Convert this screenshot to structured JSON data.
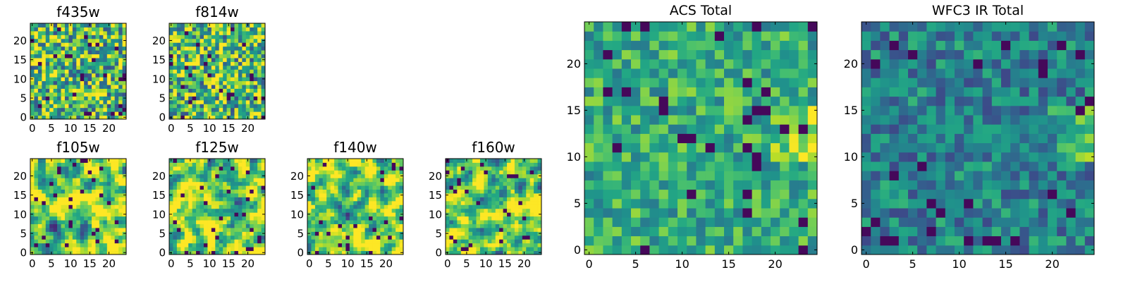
{
  "chart_data": [
    {
      "type": "heatmap",
      "title": "f435w",
      "colormap": "viridis",
      "xlim": [
        0,
        24
      ],
      "ylim": [
        0,
        24
      ],
      "xticks": [
        0,
        5,
        10,
        15,
        20
      ],
      "yticks": [
        0,
        5,
        10,
        15,
        20
      ],
      "grid_size": 25,
      "cmap_range": [
        0,
        1
      ]
    },
    {
      "type": "heatmap",
      "title": "f814w",
      "colormap": "viridis",
      "xlim": [
        0,
        24
      ],
      "ylim": [
        0,
        24
      ],
      "xticks": [
        0,
        5,
        10,
        15,
        20
      ],
      "yticks": [
        0,
        5,
        10,
        15,
        20
      ],
      "grid_size": 25,
      "cmap_range": [
        0,
        1
      ]
    },
    {
      "type": "heatmap",
      "title": "f105w",
      "colormap": "viridis",
      "xlim": [
        0,
        24
      ],
      "ylim": [
        0,
        24
      ],
      "xticks": [
        0,
        5,
        10,
        15,
        20
      ],
      "yticks": [
        0,
        5,
        10,
        15,
        20
      ],
      "grid_size": 25,
      "cmap_range": [
        0,
        1
      ]
    },
    {
      "type": "heatmap",
      "title": "f125w",
      "colormap": "viridis",
      "xlim": [
        0,
        24
      ],
      "ylim": [
        0,
        24
      ],
      "xticks": [
        0,
        5,
        10,
        15,
        20
      ],
      "yticks": [
        0,
        5,
        10,
        15,
        20
      ],
      "grid_size": 25,
      "cmap_range": [
        0,
        1
      ]
    },
    {
      "type": "heatmap",
      "title": "f140w",
      "colormap": "viridis",
      "xlim": [
        0,
        24
      ],
      "ylim": [
        0,
        24
      ],
      "xticks": [
        0,
        5,
        10,
        15,
        20
      ],
      "yticks": [
        0,
        5,
        10,
        15,
        20
      ],
      "grid_size": 25,
      "cmap_range": [
        0,
        1
      ]
    },
    {
      "type": "heatmap",
      "title": "f160w",
      "colormap": "viridis",
      "xlim": [
        0,
        24
      ],
      "ylim": [
        0,
        24
      ],
      "xticks": [
        0,
        5,
        10,
        15,
        20
      ],
      "yticks": [
        0,
        5,
        10,
        15,
        20
      ],
      "grid_size": 25,
      "cmap_range": [
        0,
        1
      ]
    },
    {
      "type": "heatmap",
      "title": "ACS Total",
      "colormap": "viridis",
      "xlim": [
        0,
        24
      ],
      "ylim": [
        0,
        24
      ],
      "xticks": [
        0,
        5,
        10,
        15,
        20
      ],
      "yticks": [
        0,
        5,
        10,
        15,
        20
      ],
      "grid_size": 25,
      "cmap_range": [
        0,
        1
      ]
    },
    {
      "type": "heatmap",
      "title": "WFC3 IR Total",
      "colormap": "viridis",
      "xlim": [
        0,
        24
      ],
      "ylim": [
        0,
        24
      ],
      "xticks": [
        0,
        5,
        10,
        15,
        20
      ],
      "yticks": [
        0,
        5,
        10,
        15,
        20
      ],
      "grid_size": 25,
      "cmap_range": [
        0,
        1
      ]
    }
  ]
}
